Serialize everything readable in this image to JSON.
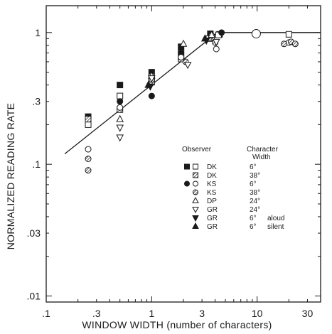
{
  "chart_data": {
    "type": "scatter",
    "title": "",
    "xlabel": "WINDOW WIDTH (number of characters)",
    "ylabel": "NORMALIZED READING RATE",
    "xscale": "log",
    "yscale": "log",
    "xlim": [
      0.1,
      40
    ],
    "ylim": [
      0.009,
      1.6
    ],
    "xticks": [
      {
        "v": 0.1,
        "label": ".1"
      },
      {
        "v": 0.3,
        "label": ".3"
      },
      {
        "v": 1,
        "label": "1"
      },
      {
        "v": 3,
        "label": "3"
      },
      {
        "v": 10,
        "label": "10"
      },
      {
        "v": 30,
        "label": "30"
      }
    ],
    "yticks": [
      {
        "v": 0.01,
        "label": ".01"
      },
      {
        "v": 0.03,
        "label": ".03"
      },
      {
        "v": 0.1,
        "label": ".1"
      },
      {
        "v": 0.3,
        "label": ".3"
      },
      {
        "v": 1,
        "label": "1"
      }
    ],
    "grid": false,
    "legend_position": "lower-right",
    "legend_header": {
      "observer": "Observer",
      "width_line1": "Character",
      "width_line2": "Width"
    },
    "legend": [
      {
        "observer": "DK",
        "width": "6°",
        "note": "",
        "markers": [
          "square-filled",
          "square-open"
        ]
      },
      {
        "observer": "DK",
        "width": "38°",
        "note": "",
        "markers": [
          "square-hatched"
        ]
      },
      {
        "observer": "KS",
        "width": "6°",
        "note": "",
        "markers": [
          "circle-filled",
          "circle-open"
        ]
      },
      {
        "observer": "KS",
        "width": "38°",
        "note": "",
        "markers": [
          "circle-hatched"
        ]
      },
      {
        "observer": "DP",
        "width": "24°",
        "note": "",
        "markers": [
          "triangle-up-open"
        ]
      },
      {
        "observer": "GR",
        "width": "24°",
        "note": "",
        "markers": [
          "triangle-down-open"
        ]
      },
      {
        "observer": "GR",
        "width": "6°",
        "note": "aloud",
        "markers": [
          "triangle-down-filled"
        ]
      },
      {
        "observer": "GR",
        "width": "6°",
        "note": "silent",
        "markers": [
          "triangle-up-filled"
        ]
      }
    ],
    "fit_line": [
      [
        0.15,
        0.12
      ],
      [
        4.2,
        1.0
      ],
      [
        40,
        1.0
      ]
    ],
    "series": [
      {
        "name": "DK 6° filled",
        "marker": "square-filled",
        "points": [
          [
            0.25,
            0.23
          ],
          [
            0.5,
            0.4
          ],
          [
            1.0,
            0.5
          ],
          [
            1.9,
            0.78
          ],
          [
            3.6,
            0.98
          ],
          [
            4.4,
            0.97
          ]
        ]
      },
      {
        "name": "DK 6° open",
        "marker": "square-open",
        "points": [
          [
            0.25,
            0.2
          ],
          [
            0.5,
            0.33
          ],
          [
            1.0,
            0.45
          ],
          [
            1.9,
            0.7
          ],
          [
            3.5,
            0.9
          ],
          [
            4.3,
            0.96
          ],
          [
            20,
            0.97
          ]
        ]
      },
      {
        "name": "DK 38°",
        "marker": "square-hatched",
        "points": [
          [
            0.25,
            0.22
          ],
          [
            0.5,
            0.26
          ],
          [
            1.0,
            0.42
          ],
          [
            1.9,
            0.63
          ],
          [
            3.7,
            0.92
          ]
        ]
      },
      {
        "name": "KS 6° filled",
        "marker": "circle-filled",
        "points": [
          [
            0.5,
            0.3
          ],
          [
            1.0,
            0.33
          ],
          [
            1.9,
            0.7
          ],
          [
            4.6,
            1.0
          ]
        ]
      },
      {
        "name": "KS 6° open",
        "marker": "circle-open",
        "points": [
          [
            0.25,
            0.13
          ],
          [
            0.5,
            0.27
          ],
          [
            1.0,
            0.47
          ],
          [
            1.9,
            0.65
          ],
          [
            3.7,
            0.95
          ],
          [
            4.1,
            0.75
          ],
          [
            9.8,
            0.98
          ],
          [
            20,
            0.84
          ]
        ]
      },
      {
        "name": "KS 38°",
        "marker": "circle-hatched",
        "points": [
          [
            0.25,
            0.11
          ],
          [
            0.25,
            0.09
          ],
          [
            1.0,
            0.44
          ],
          [
            2.1,
            0.6
          ],
          [
            4.0,
            0.84
          ],
          [
            18,
            0.82
          ],
          [
            21,
            0.85
          ],
          [
            23,
            0.82
          ]
        ]
      },
      {
        "name": "DP 24°",
        "marker": "triangle-up-open",
        "points": [
          [
            0.5,
            0.22
          ],
          [
            1.0,
            0.47
          ],
          [
            2.0,
            0.82
          ],
          [
            3.7,
            0.96
          ]
        ]
      },
      {
        "name": "GR 24°",
        "marker": "triangle-down-open",
        "points": [
          [
            0.5,
            0.16
          ],
          [
            0.5,
            0.19
          ],
          [
            1.0,
            0.45
          ],
          [
            2.2,
            0.57
          ],
          [
            4.1,
            0.85
          ]
        ]
      },
      {
        "name": "GR 6° aloud",
        "marker": "triangle-down-filled",
        "points": [
          [
            0.97,
            0.39
          ],
          [
            3.3,
            0.87
          ]
        ]
      },
      {
        "name": "GR 6° silent",
        "marker": "triangle-up-filled",
        "points": [
          [
            0.93,
            0.4
          ],
          [
            3.2,
            0.9
          ]
        ]
      }
    ]
  }
}
